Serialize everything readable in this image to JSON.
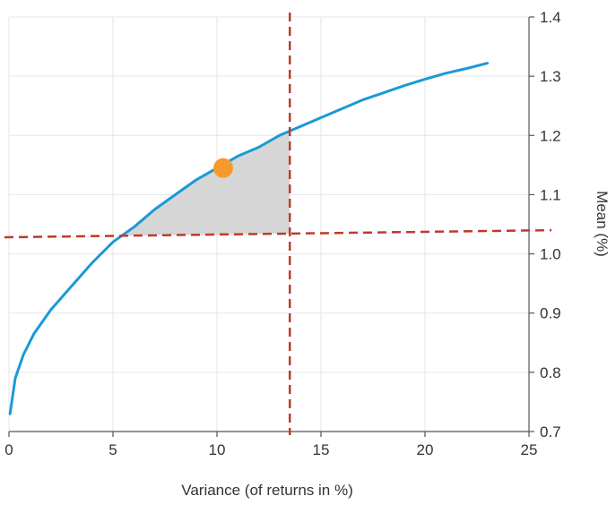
{
  "chart_data": {
    "type": "line",
    "title": "",
    "xlabel": "Variance (of returns in %)",
    "ylabel": "Mean (%)",
    "xlim": [
      0,
      25
    ],
    "ylim": [
      0.7,
      1.4
    ],
    "grid": true,
    "x_ticks": [
      0,
      5,
      10,
      15,
      20,
      25
    ],
    "y_ticks": [
      0.7,
      0.8,
      0.9,
      1.0,
      1.1,
      1.2,
      1.3,
      1.4
    ],
    "x_tick_labels": [
      "0",
      "5",
      "10",
      "15",
      "20",
      "25"
    ],
    "y_tick_labels": [
      "0.7",
      "0.8",
      "0.9",
      "1.0",
      "1.1",
      "1.2",
      "1.3",
      "1.4"
    ],
    "y_axis_side": "right",
    "series": [
      {
        "color": "#1a9ad6",
        "x": [
          0.05,
          0.3,
          0.7,
          1.2,
          2,
          3,
          4,
          5,
          6,
          7,
          8,
          9,
          10,
          11,
          12,
          13,
          14,
          15,
          16,
          17,
          18,
          19,
          20,
          21,
          22,
          23
        ],
        "y": [
          0.73,
          0.79,
          0.83,
          0.865,
          0.905,
          0.945,
          0.985,
          1.02,
          1.045,
          1.075,
          1.1,
          1.125,
          1.145,
          1.165,
          1.18,
          1.2,
          1.215,
          1.23,
          1.245,
          1.26,
          1.272,
          1.284,
          1.295,
          1.305,
          1.313,
          1.322
        ]
      }
    ],
    "reference_lines": [
      {
        "orientation": "horizontal",
        "from": [
          0,
          1.028
        ],
        "to": [
          25,
          1.04
        ],
        "color": "#c0392b",
        "style": "dashed"
      },
      {
        "orientation": "vertical",
        "x": 13.5,
        "color": "#c0392b",
        "style": "dashed"
      }
    ],
    "shaded_region": {
      "x_from": 5.7,
      "x_to": 13.5,
      "color": "#d6d6d6"
    },
    "highlight_point": {
      "x": 10.3,
      "y": 1.145,
      "color": "#f79a2e"
    }
  }
}
